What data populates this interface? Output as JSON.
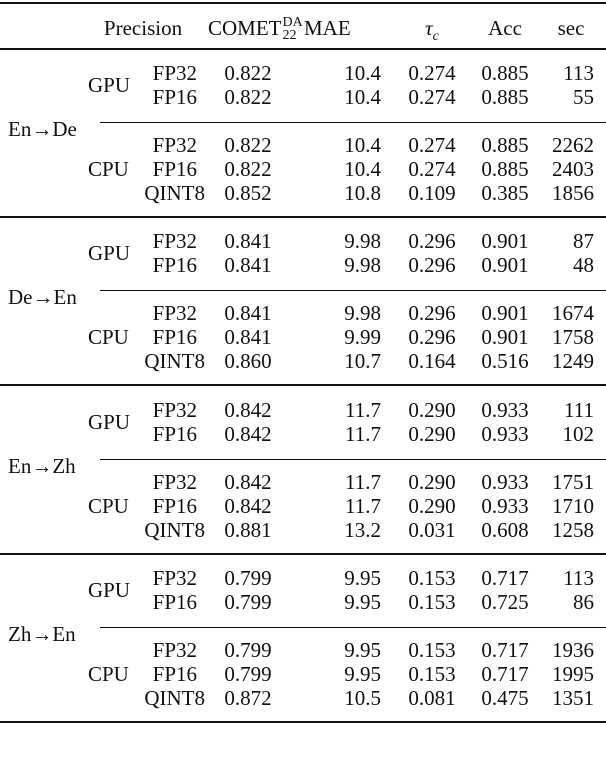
{
  "header": {
    "precision": "Precision",
    "comet": "COMET",
    "comet_sup": "DA",
    "comet_sub": "22",
    "mae": "MAE",
    "tau": "τ",
    "tau_sub": "c",
    "acc": "Acc",
    "sec": "sec"
  },
  "groups": [
    {
      "lang": "En→De",
      "gpu_label": "GPU",
      "cpu_label": "CPU",
      "rows": [
        {
          "precision": "FP32",
          "comet": "0.822",
          "mae": "10.4",
          "tau": "0.274",
          "acc": "0.885",
          "sec": "113"
        },
        {
          "precision": "FP16",
          "comet": "0.822",
          "mae": "10.4",
          "tau": "0.274",
          "acc": "0.885",
          "sec": "55"
        },
        {
          "precision": "FP32",
          "comet": "0.822",
          "mae": "10.4",
          "tau": "0.274",
          "acc": "0.885",
          "sec": "2262"
        },
        {
          "precision": "FP16",
          "comet": "0.822",
          "mae": "10.4",
          "tau": "0.274",
          "acc": "0.885",
          "sec": "2403"
        },
        {
          "precision": "QINT8",
          "comet": "0.852",
          "mae": "10.8",
          "tau": "0.109",
          "acc": "0.385",
          "sec": "1856"
        }
      ]
    },
    {
      "lang": "De→En",
      "gpu_label": "GPU",
      "cpu_label": "CPU",
      "rows": [
        {
          "precision": "FP32",
          "comet": "0.841",
          "mae": "9.98",
          "tau": "0.296",
          "acc": "0.901",
          "sec": "87"
        },
        {
          "precision": "FP16",
          "comet": "0.841",
          "mae": "9.98",
          "tau": "0.296",
          "acc": "0.901",
          "sec": "48"
        },
        {
          "precision": "FP32",
          "comet": "0.841",
          "mae": "9.98",
          "tau": "0.296",
          "acc": "0.901",
          "sec": "1674"
        },
        {
          "precision": "FP16",
          "comet": "0.841",
          "mae": "9.99",
          "tau": "0.296",
          "acc": "0.901",
          "sec": "1758"
        },
        {
          "precision": "QINT8",
          "comet": "0.860",
          "mae": "10.7",
          "tau": "0.164",
          "acc": "0.516",
          "sec": "1249"
        }
      ]
    },
    {
      "lang": "En→Zh",
      "gpu_label": "GPU",
      "cpu_label": "CPU",
      "rows": [
        {
          "precision": "FP32",
          "comet": "0.842",
          "mae": "11.7",
          "tau": "0.290",
          "acc": "0.933",
          "sec": "111"
        },
        {
          "precision": "FP16",
          "comet": "0.842",
          "mae": "11.7",
          "tau": "0.290",
          "acc": "0.933",
          "sec": "102"
        },
        {
          "precision": "FP32",
          "comet": "0.842",
          "mae": "11.7",
          "tau": "0.290",
          "acc": "0.933",
          "sec": "1751"
        },
        {
          "precision": "FP16",
          "comet": "0.842",
          "mae": "11.7",
          "tau": "0.290",
          "acc": "0.933",
          "sec": "1710"
        },
        {
          "precision": "QINT8",
          "comet": "0.881",
          "mae": "13.2",
          "tau": "0.031",
          "acc": "0.608",
          "sec": "1258"
        }
      ]
    },
    {
      "lang": "Zh→En",
      "gpu_label": "GPU",
      "cpu_label": "CPU",
      "rows": [
        {
          "precision": "FP32",
          "comet": "0.799",
          "mae": "9.95",
          "tau": "0.153",
          "acc": "0.717",
          "sec": "113"
        },
        {
          "precision": "FP16",
          "comet": "0.799",
          "mae": "9.95",
          "tau": "0.153",
          "acc": "0.725",
          "sec": "86"
        },
        {
          "precision": "FP32",
          "comet": "0.799",
          "mae": "9.95",
          "tau": "0.153",
          "acc": "0.717",
          "sec": "1936"
        },
        {
          "precision": "FP16",
          "comet": "0.799",
          "mae": "9.95",
          "tau": "0.153",
          "acc": "0.717",
          "sec": "1995"
        },
        {
          "precision": "QINT8",
          "comet": "0.872",
          "mae": "10.5",
          "tau": "0.081",
          "acc": "0.475",
          "sec": "1351"
        }
      ]
    }
  ]
}
